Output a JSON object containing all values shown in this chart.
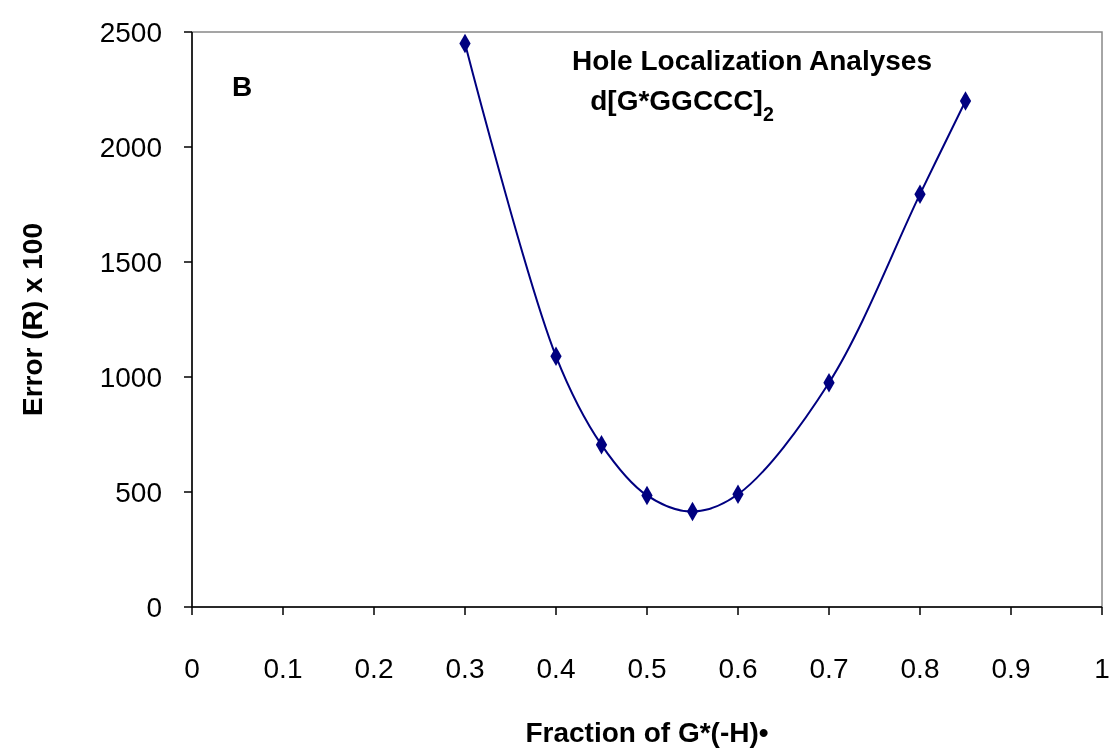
{
  "chart_data": {
    "type": "line",
    "title": "Hole Localization Analyses",
    "subtitle": "d[G*GGCCC]$_{2}$",
    "xlabel": "Fraction of G*(-H)•",
    "ylabel": "Error (R) x 100",
    "annotations": [
      "B"
    ],
    "x": [
      0.3,
      0.4,
      0.45,
      0.5,
      0.55,
      0.6,
      0.7,
      0.8,
      0.85
    ],
    "series": [
      {
        "color": "#000080",
        "values": [
          2450,
          1090,
          705,
          485,
          415,
          490,
          975,
          1795,
          2200
        ]
      }
    ],
    "xlim": [
      0,
      1
    ],
    "ylim": [
      0,
      2500
    ],
    "xticks": [
      0,
      0.1,
      0.2,
      0.3,
      0.4,
      0.5,
      0.6,
      0.7,
      0.8,
      0.9,
      1
    ],
    "yticks": [
      0,
      500,
      1000,
      1500,
      2000,
      2500
    ],
    "marker": "diamond",
    "line_style": "solid"
  }
}
